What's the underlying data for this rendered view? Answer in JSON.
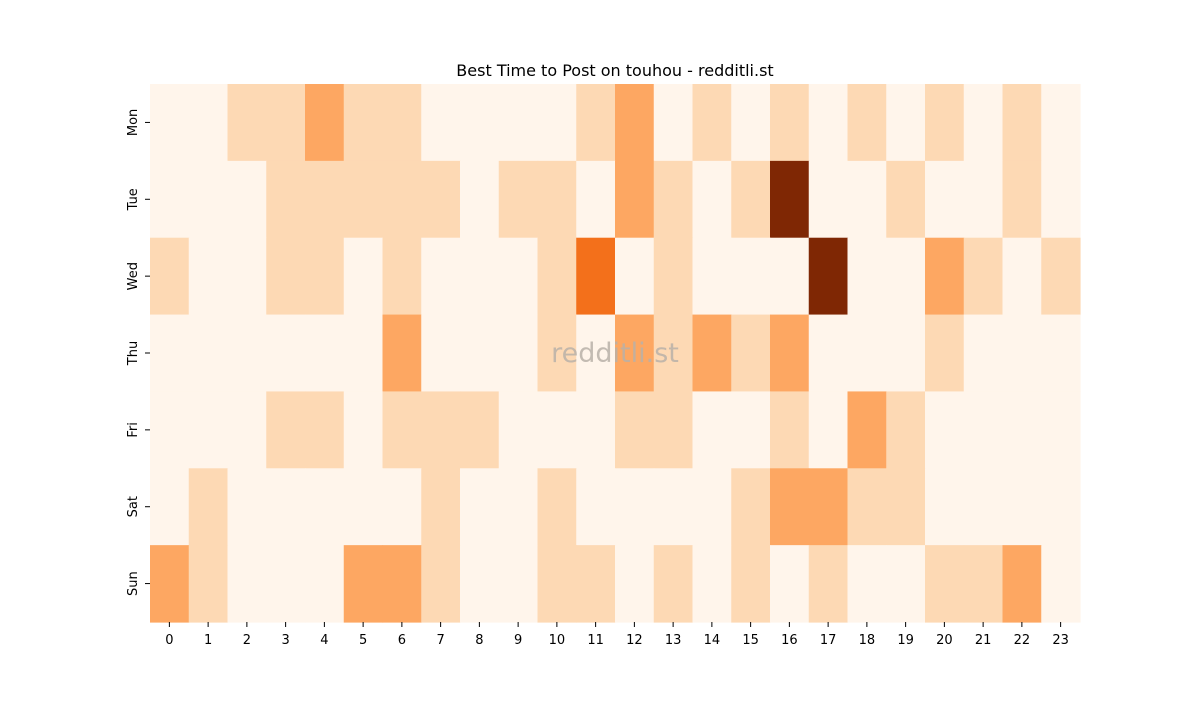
{
  "chart_data": {
    "type": "heatmap",
    "title": "Best Time to Post on touhou - redditli.st",
    "watermark": "redditli.st",
    "x": [
      "0",
      "1",
      "2",
      "3",
      "4",
      "5",
      "6",
      "7",
      "8",
      "9",
      "10",
      "11",
      "12",
      "13",
      "14",
      "15",
      "16",
      "17",
      "18",
      "19",
      "20",
      "21",
      "22",
      "23"
    ],
    "y": [
      "Mon",
      "Tue",
      "Wed",
      "Thu",
      "Fri",
      "Sat",
      "Sun"
    ],
    "values": [
      [
        0,
        0,
        1,
        1,
        2,
        1,
        1,
        0,
        0,
        0,
        0,
        1,
        2,
        0,
        1,
        0,
        1,
        0,
        1,
        0,
        1,
        0,
        1,
        0
      ],
      [
        0,
        0,
        0,
        1,
        1,
        1,
        1,
        1,
        0,
        1,
        1,
        0,
        2,
        1,
        0,
        1,
        5,
        0,
        0,
        1,
        0,
        0,
        1,
        0
      ],
      [
        1,
        0,
        0,
        1,
        1,
        0,
        1,
        0,
        0,
        0,
        1,
        3,
        0,
        1,
        0,
        0,
        0,
        5,
        0,
        0,
        2,
        1,
        0,
        1
      ],
      [
        0,
        0,
        0,
        0,
        0,
        0,
        2,
        0,
        0,
        0,
        1,
        0,
        2,
        1,
        2,
        1,
        2,
        0,
        0,
        0,
        1,
        0,
        0,
        0
      ],
      [
        0,
        0,
        0,
        1,
        1,
        0,
        1,
        1,
        1,
        0,
        0,
        0,
        1,
        1,
        0,
        0,
        1,
        0,
        2,
        1,
        0,
        0,
        0,
        0
      ],
      [
        0,
        1,
        0,
        0,
        0,
        0,
        0,
        1,
        0,
        0,
        1,
        0,
        0,
        0,
        0,
        1,
        2,
        2,
        1,
        1,
        0,
        0,
        0,
        0
      ],
      [
        2,
        1,
        0,
        0,
        0,
        2,
        2,
        1,
        0,
        0,
        1,
        1,
        0,
        1,
        0,
        1,
        0,
        1,
        0,
        0,
        1,
        1,
        2,
        0
      ]
    ],
    "vmin": 0,
    "vmax": 5,
    "colormap": [
      "#fff5eb",
      "#fdd9b4",
      "#fda762",
      "#f3701b",
      "#c54102",
      "#7f2704"
    ],
    "colorbar": false,
    "grid": false
  }
}
